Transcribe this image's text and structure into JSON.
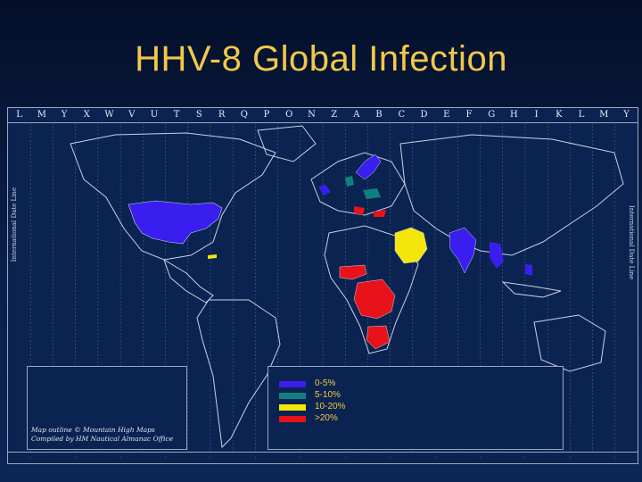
{
  "title": "HHV-8 Global Infection",
  "map": {
    "time_zones": [
      "L",
      "M",
      "Y",
      "X",
      "W",
      "V",
      "U",
      "T",
      "S",
      "R",
      "Q",
      "P",
      "O",
      "N",
      "Z",
      "A",
      "B",
      "C",
      "D",
      "E",
      "F",
      "G",
      "H",
      "I",
      "K",
      "L",
      "M",
      "Y"
    ],
    "side_left_text": "International Date Line",
    "side_right_text": "International Date Line",
    "credit_line1": "Map outline © Mountain High Maps",
    "credit_line2": "Compiled by HM Nautical Almanac Office",
    "colors": {
      "background": "#0b2350",
      "outline": "#9aa7c4",
      "very_low": "#3a1ef0",
      "low": "#0f8080",
      "medium": "#f5e60a",
      "high": "#e8121a"
    }
  },
  "legend": {
    "items": [
      {
        "label": "0-5%",
        "color": "#3a1ef0"
      },
      {
        "label": "5-10%",
        "color": "#0f8080"
      },
      {
        "label": "10-20%",
        "color": "#f5e60a"
      },
      {
        "label": ">20%",
        "color": "#e8121a"
      }
    ]
  },
  "regions": [
    {
      "name": "United States",
      "category": "0-5%"
    },
    {
      "name": "Caribbean",
      "category": "10-20%"
    },
    {
      "name": "Northern Europe",
      "category": "0-5%"
    },
    {
      "name": "Western Europe",
      "category": "0-5%"
    },
    {
      "name": "Central Europe",
      "category": "5-10%"
    },
    {
      "name": "Mediterranean",
      "category": "10-20%"
    },
    {
      "name": "Middle East",
      "category": "10-20%"
    },
    {
      "name": "India",
      "category": "0-5%"
    },
    {
      "name": "Southeast Asia",
      "category": "0-5%"
    },
    {
      "name": "West Africa",
      "category": ">20%"
    },
    {
      "name": "Central Africa",
      "category": ">20%"
    },
    {
      "name": "Southern Africa",
      "category": ">20%"
    }
  ]
}
